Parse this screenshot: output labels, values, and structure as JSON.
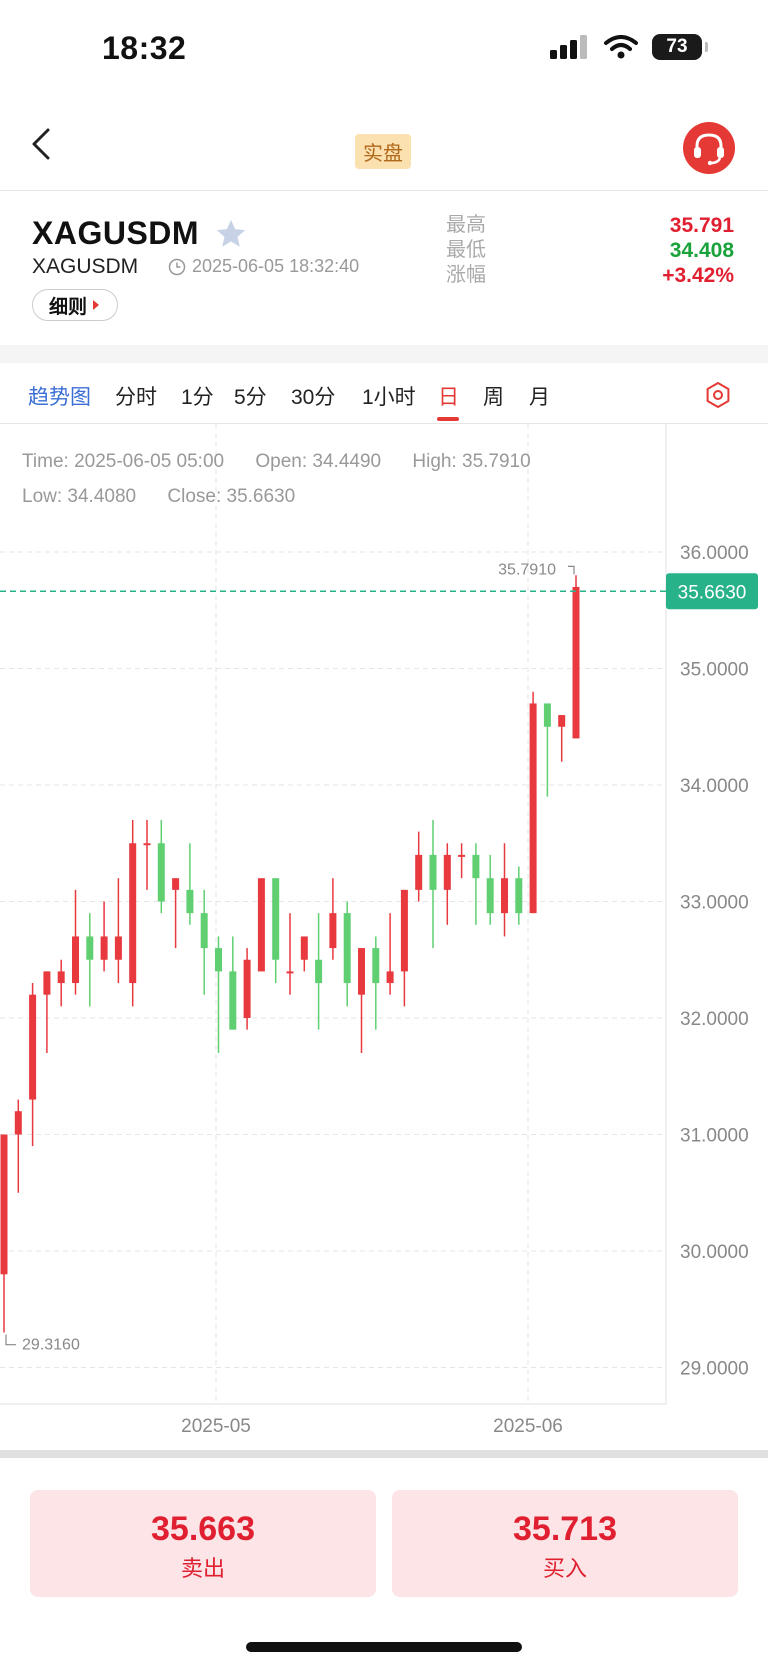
{
  "status": {
    "time": "18:32",
    "battery": "73"
  },
  "nav": {
    "badge": "实盘"
  },
  "symbol": {
    "title": "XAGUSDM",
    "subtitle": "XAGUSDM",
    "timestamp": "2025-06-05 18:32:40",
    "rules_label": "细则",
    "stats": {
      "high_label": "最高",
      "high_value": "35.791",
      "low_label": "最低",
      "low_value": "34.408",
      "change_label": "涨幅",
      "change_value": "+3.42%"
    }
  },
  "tabs": [
    "趋势图",
    "分时",
    "1分",
    "5分",
    "30分",
    "1小时",
    "日",
    "周",
    "月"
  ],
  "active_tab": "日",
  "ohlc": {
    "time": "Time: 2025-06-05 05:00",
    "open": "Open: 34.4490",
    "high": "High: 35.7910",
    "low": "Low: 34.4080",
    "close": "Close: 35.6630"
  },
  "chart_data": {
    "type": "candlestick",
    "y_ticks": [
      "36.0000",
      "35.0000",
      "34.0000",
      "33.0000",
      "32.0000",
      "31.0000",
      "30.0000",
      "29.0000"
    ],
    "x_ticks": [
      "2025-05",
      "2025-06"
    ],
    "current_price_label": "35.6630",
    "max_label": "35.7910",
    "min_label": "29.3160",
    "colors": {
      "up": "#e8393f",
      "down": "#5fcf72"
    },
    "candles": [
      [
        29.8,
        31.0,
        29.3,
        31.0
      ],
      [
        31.0,
        31.2,
        30.5,
        31.3
      ],
      [
        31.3,
        32.2,
        30.9,
        32.3
      ],
      [
        32.2,
        32.4,
        31.7,
        32.4
      ],
      [
        32.3,
        32.4,
        32.1,
        32.5
      ],
      [
        32.3,
        32.7,
        32.2,
        33.1
      ],
      [
        32.7,
        32.5,
        32.1,
        32.9
      ],
      [
        32.5,
        32.7,
        32.4,
        33.0
      ],
      [
        32.5,
        32.7,
        32.3,
        33.2
      ],
      [
        32.3,
        33.5,
        32.1,
        33.7
      ],
      [
        33.5,
        33.5,
        33.1,
        33.7
      ],
      [
        33.5,
        33.0,
        32.9,
        33.7
      ],
      [
        33.1,
        33.2,
        32.6,
        33.2
      ],
      [
        33.1,
        32.9,
        32.8,
        33.5
      ],
      [
        32.9,
        32.6,
        32.2,
        33.1
      ],
      [
        32.6,
        32.4,
        31.7,
        32.7
      ],
      [
        32.4,
        31.9,
        31.9,
        32.7
      ],
      [
        32.0,
        32.5,
        31.9,
        32.6
      ],
      [
        32.4,
        33.2,
        32.4,
        33.2
      ],
      [
        33.2,
        32.5,
        32.3,
        33.2
      ],
      [
        32.4,
        32.4,
        32.2,
        32.9
      ],
      [
        32.5,
        32.7,
        32.4,
        32.7
      ],
      [
        32.5,
        32.3,
        31.9,
        32.9
      ],
      [
        32.6,
        32.9,
        32.5,
        33.2
      ],
      [
        32.9,
        32.3,
        32.1,
        33.0
      ],
      [
        32.2,
        32.6,
        31.7,
        32.6
      ],
      [
        32.6,
        32.3,
        31.9,
        32.7
      ],
      [
        32.3,
        32.4,
        32.2,
        32.9
      ],
      [
        32.4,
        33.1,
        32.1,
        33.1
      ],
      [
        33.1,
        33.4,
        33.0,
        33.6
      ],
      [
        33.4,
        33.1,
        32.6,
        33.7
      ],
      [
        33.1,
        33.4,
        32.8,
        33.5
      ],
      [
        33.4,
        33.4,
        33.2,
        33.5
      ],
      [
        33.4,
        33.2,
        32.8,
        33.5
      ],
      [
        33.2,
        32.9,
        32.8,
        33.4
      ],
      [
        32.9,
        33.2,
        32.7,
        33.5
      ],
      [
        33.2,
        32.9,
        32.8,
        33.3
      ],
      [
        32.9,
        34.7,
        32.9,
        34.8
      ],
      [
        34.7,
        34.5,
        33.9,
        34.7
      ],
      [
        34.5,
        34.6,
        34.2,
        34.6
      ],
      [
        34.4,
        35.7,
        34.4,
        35.8
      ]
    ]
  },
  "trade": {
    "sell_price": "35.663",
    "sell_label": "卖出",
    "buy_price": "35.713",
    "buy_label": "买入"
  }
}
